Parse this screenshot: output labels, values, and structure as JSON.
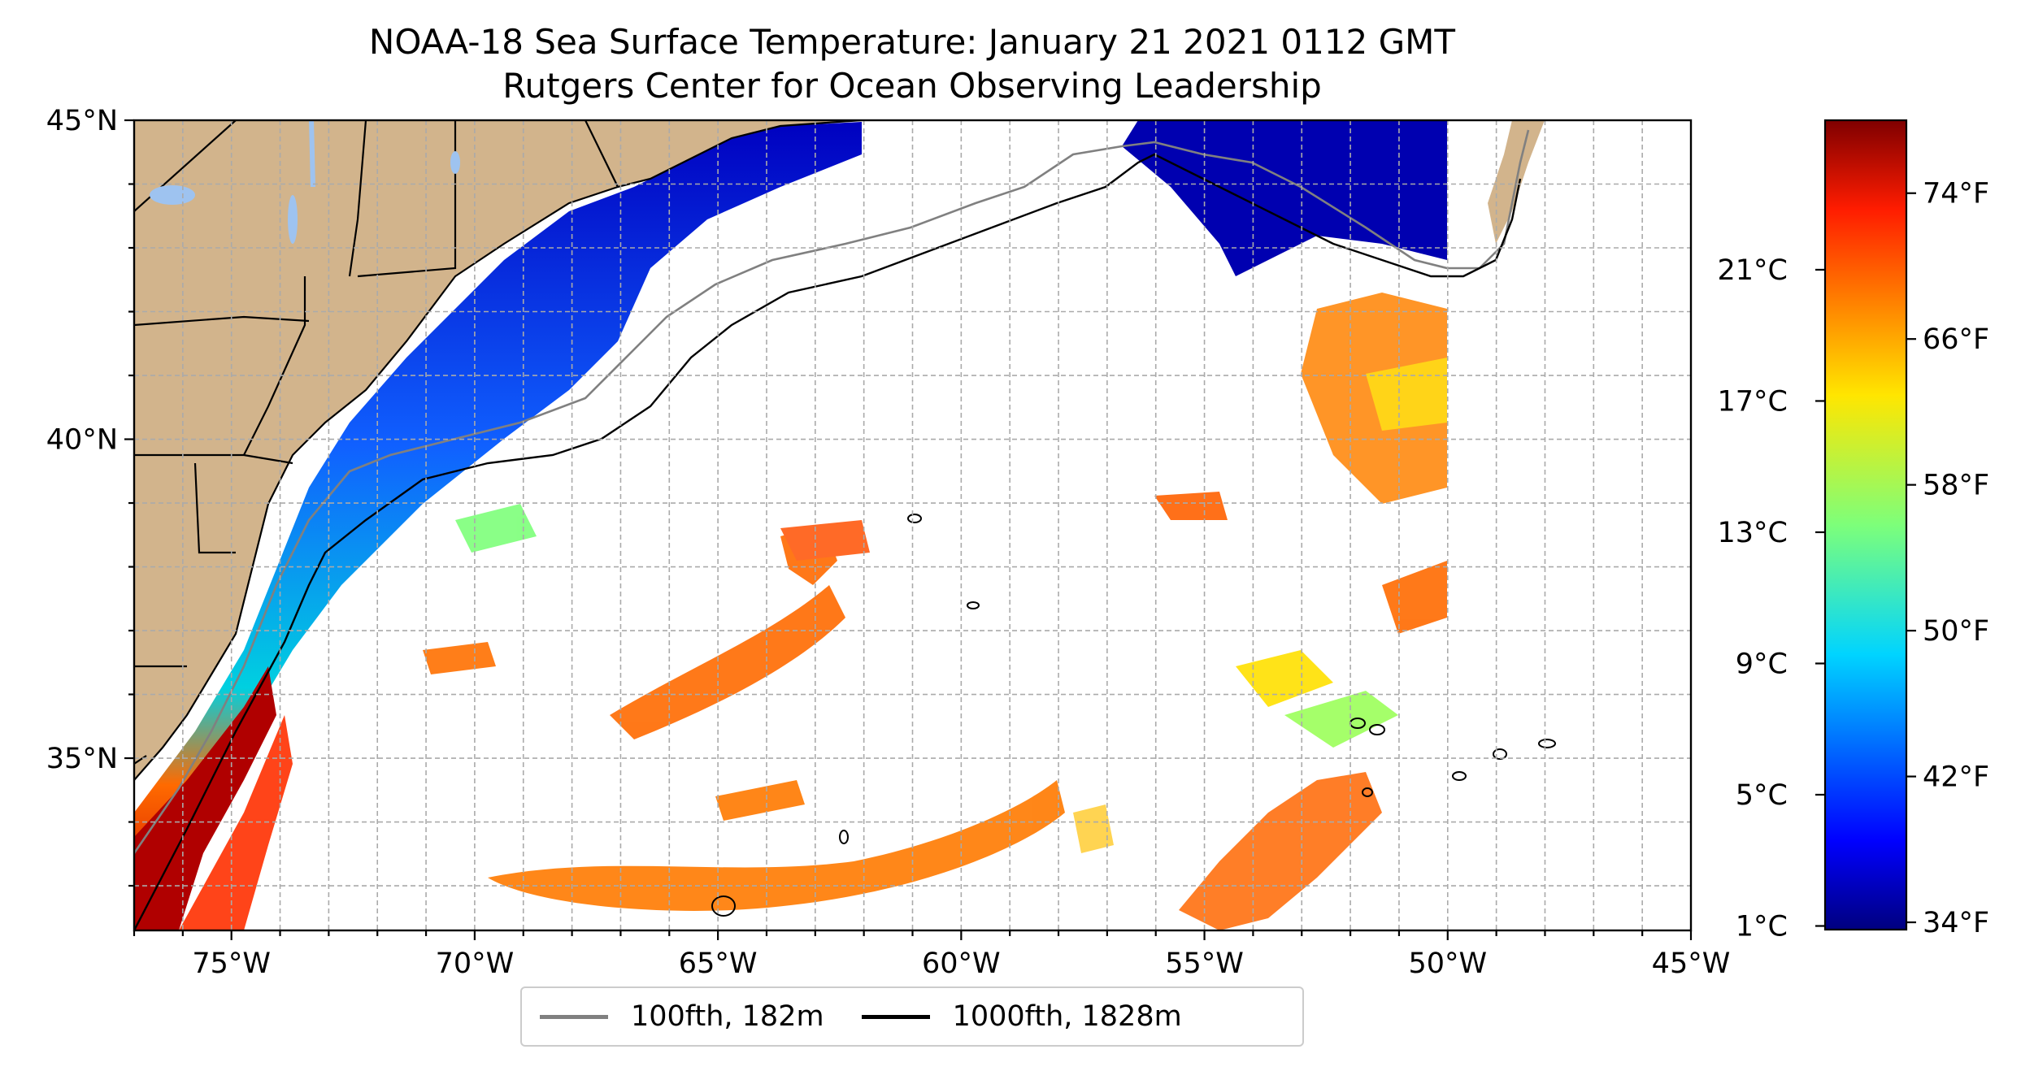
{
  "title": {
    "line1": "NOAA-18 Sea Surface Temperature: January 21 2021 0112 GMT",
    "line2": "Rutgers Center for Ocean Observing Leadership"
  },
  "map": {
    "lon_range": [
      -77,
      -45
    ],
    "lat_range": [
      32.3,
      45
    ],
    "lat_ticks": [
      {
        "value": 45,
        "label": "45°N"
      },
      {
        "value": 40,
        "label": "40°N"
      },
      {
        "value": 35,
        "label": "35°N"
      }
    ],
    "lon_ticks": [
      {
        "value": -75,
        "label": "75°W"
      },
      {
        "value": -70,
        "label": "70°W"
      },
      {
        "value": -65,
        "label": "65°W"
      },
      {
        "value": -60,
        "label": "60°W"
      },
      {
        "value": -55,
        "label": "55°W"
      },
      {
        "value": -50,
        "label": "50°W"
      },
      {
        "value": -45,
        "label": "45°W"
      }
    ],
    "gridlines": true,
    "land_color": "#d2b48c",
    "ocean_no_data_color": "#ffffff"
  },
  "colorbar": {
    "colormap": "jet",
    "celsius_ticks": [
      {
        "value": 1,
        "label": "1°C"
      },
      {
        "value": 5,
        "label": "5°C"
      },
      {
        "value": 9,
        "label": "9°C"
      },
      {
        "value": 13,
        "label": "13°C"
      },
      {
        "value": 17,
        "label": "17°C"
      },
      {
        "value": 21,
        "label": "21°C"
      }
    ],
    "fahrenheit_ticks": [
      {
        "value": 34,
        "label": "34°F"
      },
      {
        "value": 42,
        "label": "42°F"
      },
      {
        "value": 50,
        "label": "50°F"
      },
      {
        "value": 58,
        "label": "58°F"
      },
      {
        "value": 66,
        "label": "66°F"
      },
      {
        "value": 74,
        "label": "74°F"
      }
    ],
    "range_f": [
      33.6,
      78
    ]
  },
  "legend": [
    {
      "label": "100fth, 182m",
      "color": "#808080"
    },
    {
      "label": "1000fth, 1828m",
      "color": "#000000"
    }
  ]
}
